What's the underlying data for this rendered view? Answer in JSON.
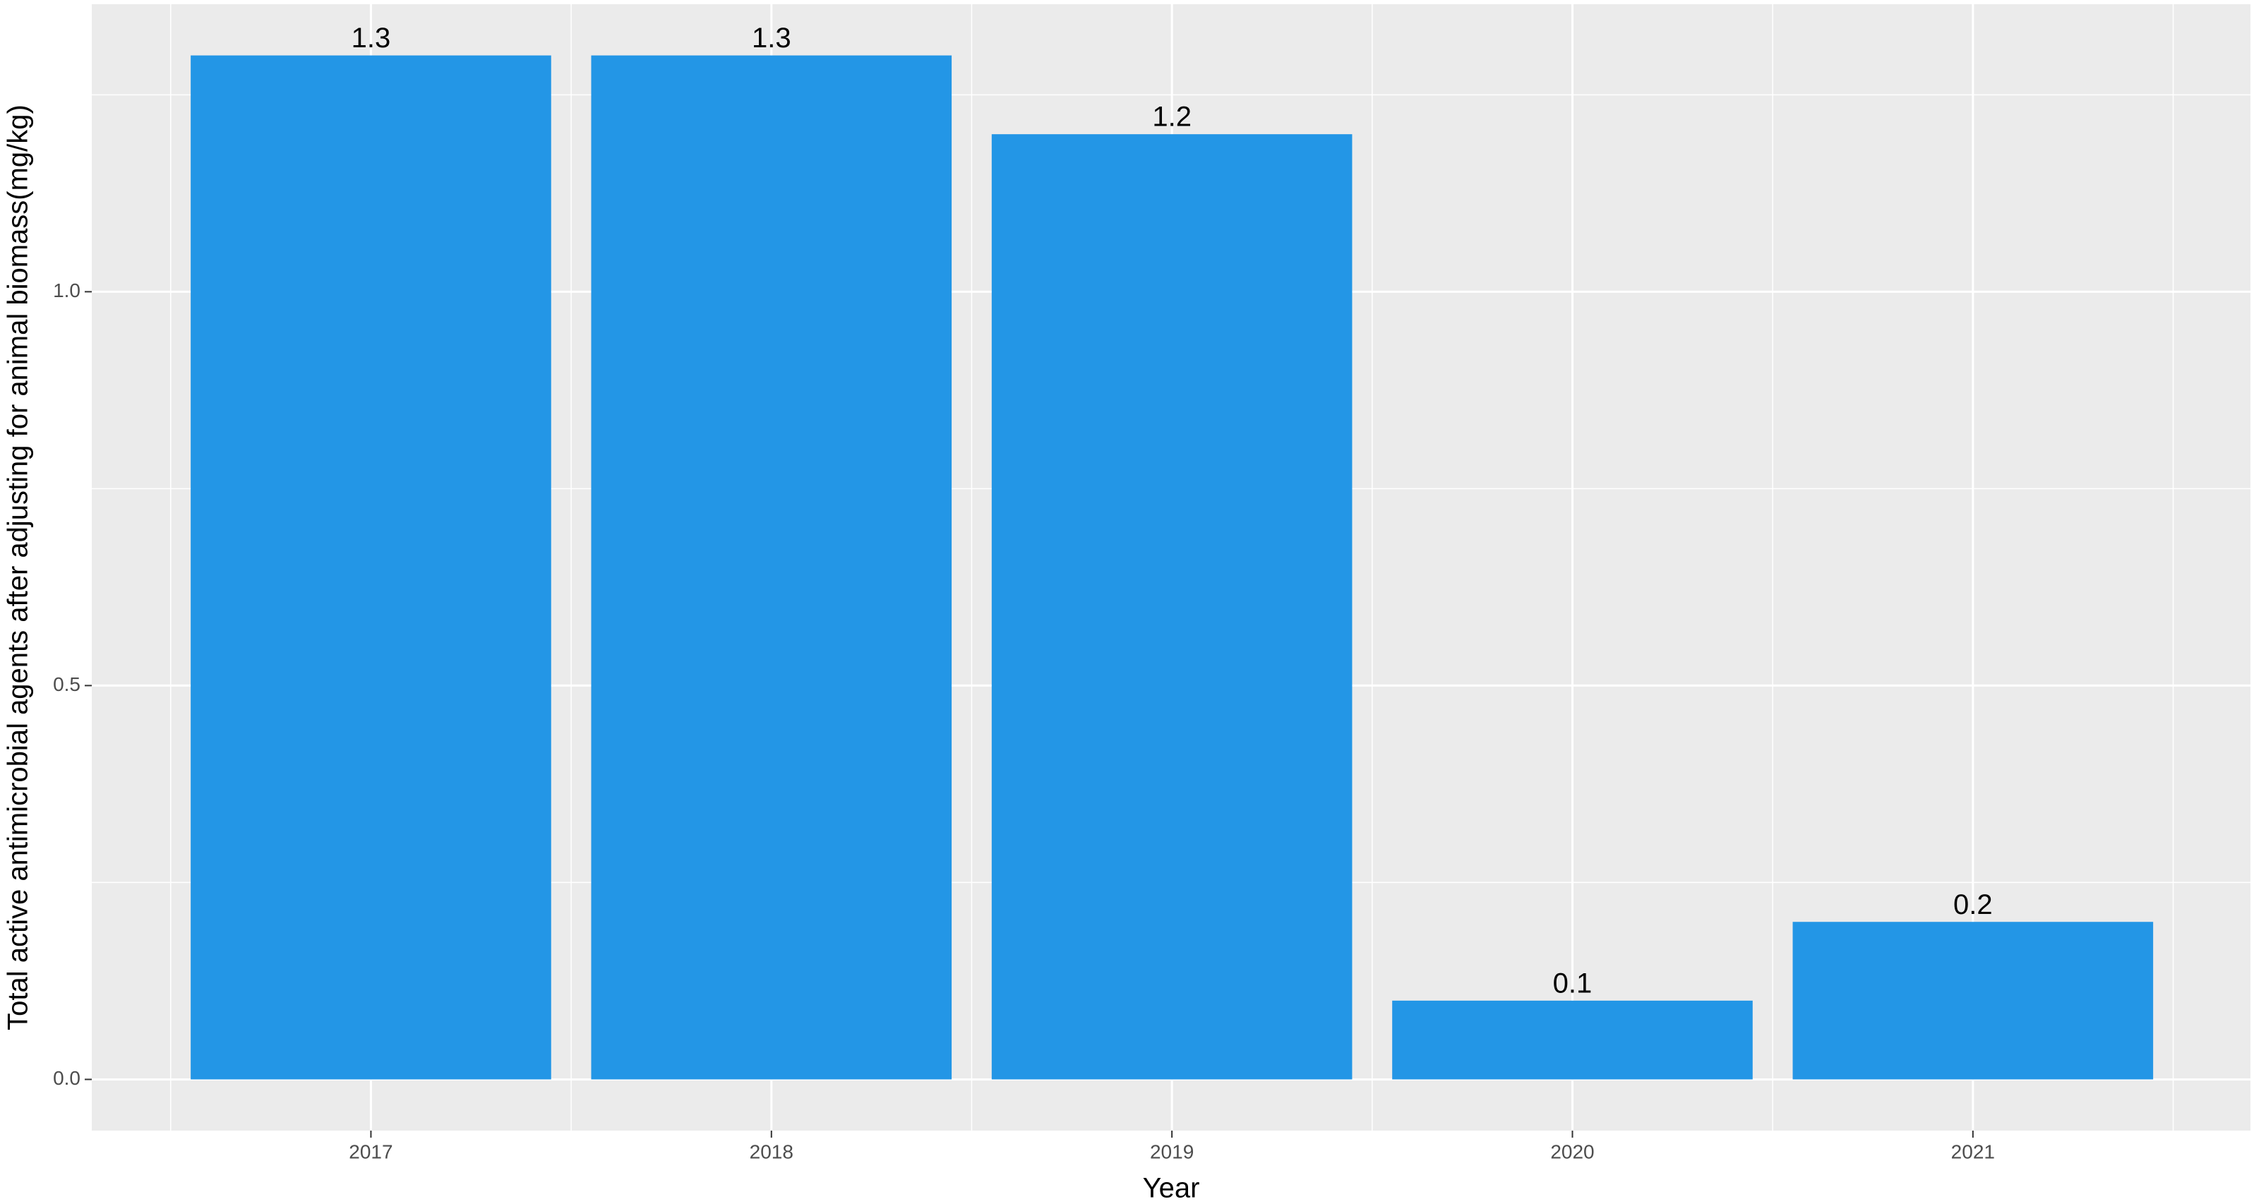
{
  "chart_data": {
    "type": "bar",
    "x_label": "Year",
    "y_label": "Total active antimicrobial agents after adjusting for animal biomass(mg/kg)",
    "categories": [
      "2017",
      "2018",
      "2019",
      "2020",
      "2021"
    ],
    "values": [
      1.3,
      1.3,
      1.2,
      0.1,
      0.2
    ],
    "color": "#2396e6",
    "ylim": [
      -0.065,
      1.365
    ],
    "yticks": [
      {
        "value": 0,
        "label": "0.0"
      },
      0.5,
      {
        "value": 1,
        "label": "1.0"
      }
    ],
    "grid": true
  }
}
